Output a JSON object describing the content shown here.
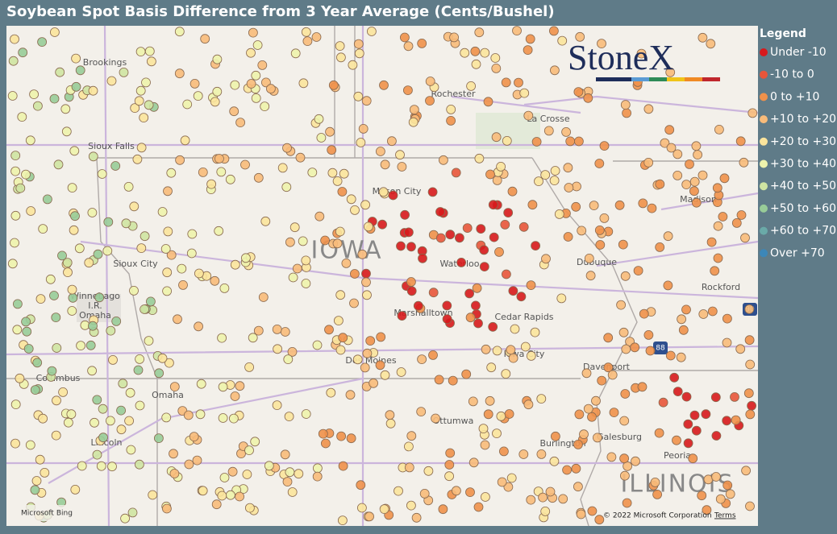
{
  "title": "Soybean Spot Basis Difference from 3 Year Average (Cents/Bushel)",
  "legend": {
    "title": "Legend",
    "items": [
      {
        "label": "Under -10",
        "color": "#d7191c"
      },
      {
        "label": "-10 to 0",
        "color": "#e8553a"
      },
      {
        "label": "0 to +10",
        "color": "#f0914a"
      },
      {
        "label": "+10 to +20",
        "color": "#f8bb7a"
      },
      {
        "label": "+20 to +30",
        "color": "#fbe49c"
      },
      {
        "label": "+30 to +40",
        "color": "#eef3ac"
      },
      {
        "label": "+40 to +50",
        "color": "#cfe4a2"
      },
      {
        "label": "+50 to +60",
        "color": "#98cc98"
      },
      {
        "label": "+60 to +70",
        "color": "#6aaaa8"
      },
      {
        "label": "Over +70",
        "color": "#3c87b8"
      }
    ]
  },
  "map": {
    "states": [
      "IOWA",
      "ILLINOIS"
    ],
    "cities": [
      "Brookings",
      "Rochester",
      "La Crosse",
      "Sioux Falls",
      "Mason City",
      "Madison",
      "Waterloo",
      "Dubuque",
      "Sioux City",
      "Winnebago",
      "I.R.",
      "Omaha",
      "Rockford",
      "Marshalltown",
      "Cedar Rapids",
      "Iowa City",
      "Des Moines",
      "Davenport",
      "Columbus",
      "Omaha",
      "Ottumwa",
      "Galesburg",
      "Burlington",
      "Lincoln",
      "Peoria"
    ],
    "shields": [
      "90",
      "88"
    ],
    "provider": "Microsoft Bing",
    "copyright": "© 2022 Microsoft Corporation",
    "terms": "Terms"
  },
  "logo": "StoneX"
}
